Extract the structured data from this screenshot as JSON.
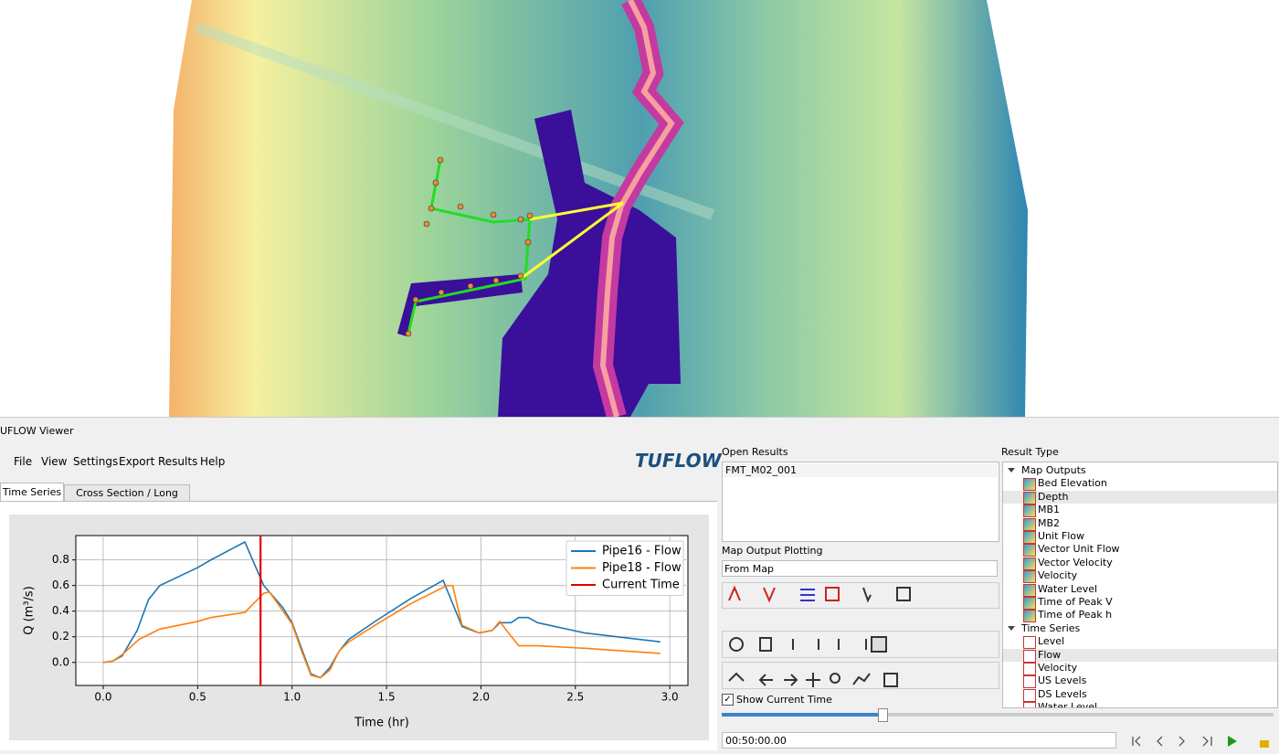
{
  "window": {
    "title": "UFLOW Viewer",
    "menu": [
      "File",
      "View",
      "Settings",
      "Export",
      "Results",
      "Help"
    ],
    "logo": "TUFLOW",
    "tabs": [
      "Time Series",
      "Cross Section / Long Profile"
    ]
  },
  "chart_data": {
    "type": "line",
    "xlabel": "Time (hr)",
    "ylabel": "Q (m³/s)",
    "xlim": [
      -0.145,
      3.096
    ],
    "ylim": [
      -0.18,
      0.99
    ],
    "xticks": [
      {
        "value": 0,
        "label": "0.0"
      },
      0.5,
      {
        "value": 1,
        "label": "1.0"
      },
      1.5,
      {
        "value": 2,
        "label": "2.0"
      },
      2.5,
      {
        "value": 3,
        "label": "3.0"
      }
    ],
    "yticks": [
      {
        "value": 0,
        "label": "0.0"
      },
      0.2,
      0.4,
      0.6,
      0.8
    ],
    "grid": true,
    "legend": "upper-right",
    "series": [
      {
        "name": "Pipe16 - Flow",
        "color": "#1f77b4",
        "x": [
          0,
          0.05,
          0.1,
          0.18,
          0.24,
          0.3,
          0.5,
          0.57,
          0.75,
          0.85,
          0.95,
          1.0,
          1.05,
          1.1,
          1.15,
          1.2,
          1.25,
          1.3,
          1.45,
          1.63,
          1.8,
          1.9,
          1.99,
          2.06,
          2.1,
          2.16,
          2.2,
          2.25,
          2.3,
          2.55,
          2.95
        ],
        "values": [
          0,
          0.01,
          0.05,
          0.25,
          0.49,
          0.6,
          0.74,
          0.8,
          0.94,
          0.6,
          0.43,
          0.31,
          0.11,
          -0.09,
          -0.12,
          -0.04,
          0.09,
          0.18,
          0.33,
          0.5,
          0.64,
          0.28,
          0.23,
          0.25,
          0.31,
          0.31,
          0.35,
          0.35,
          0.31,
          0.23,
          0.16
        ]
      },
      {
        "name": "Pipe18 - Flow",
        "color": "#ff7f0e",
        "x": [
          0,
          0.05,
          0.1,
          0.19,
          0.3,
          0.5,
          0.57,
          0.75,
          0.85,
          0.88,
          1.0,
          1.05,
          1.1,
          1.15,
          1.2,
          1.25,
          1.3,
          1.45,
          1.63,
          1.82,
          1.85,
          1.9,
          1.99,
          2.06,
          2.1,
          2.13,
          2.2,
          2.3,
          2.55,
          2.95
        ],
        "values": [
          0,
          0.01,
          0.06,
          0.18,
          0.26,
          0.32,
          0.35,
          0.39,
          0.54,
          0.55,
          0.3,
          0.09,
          -0.1,
          -0.12,
          -0.06,
          0.09,
          0.16,
          0.3,
          0.46,
          0.6,
          0.6,
          0.29,
          0.23,
          0.25,
          0.32,
          0.26,
          0.13,
          0.13,
          0.11,
          0.07
        ]
      }
    ],
    "current_time": {
      "name": "Current Time",
      "color": "#e00000",
      "x": 0.833
    }
  },
  "panel": {
    "open_results_label": "Open Results",
    "open_results": [
      "FMT_M02_001"
    ],
    "map_output_label": "Map Output Plotting",
    "map_output_mode": "From Map",
    "show_current_time": "Show Current Time",
    "time": "00:50:00.00",
    "result_type_label": "Result Type",
    "result_groups": [
      {
        "label": "Map Outputs",
        "items": [
          "Bed Elevation",
          "Depth",
          "MB1",
          "MB2",
          "Unit Flow",
          "Vector Unit Flow",
          "Vector Velocity",
          "Velocity",
          "Water Level",
          "Time of Peak V",
          "Time of Peak h"
        ]
      },
      {
        "label": "Time Series",
        "items": [
          "Level",
          "Flow",
          "Velocity",
          "US Levels",
          "DS Levels",
          "Water Level"
        ]
      }
    ]
  }
}
